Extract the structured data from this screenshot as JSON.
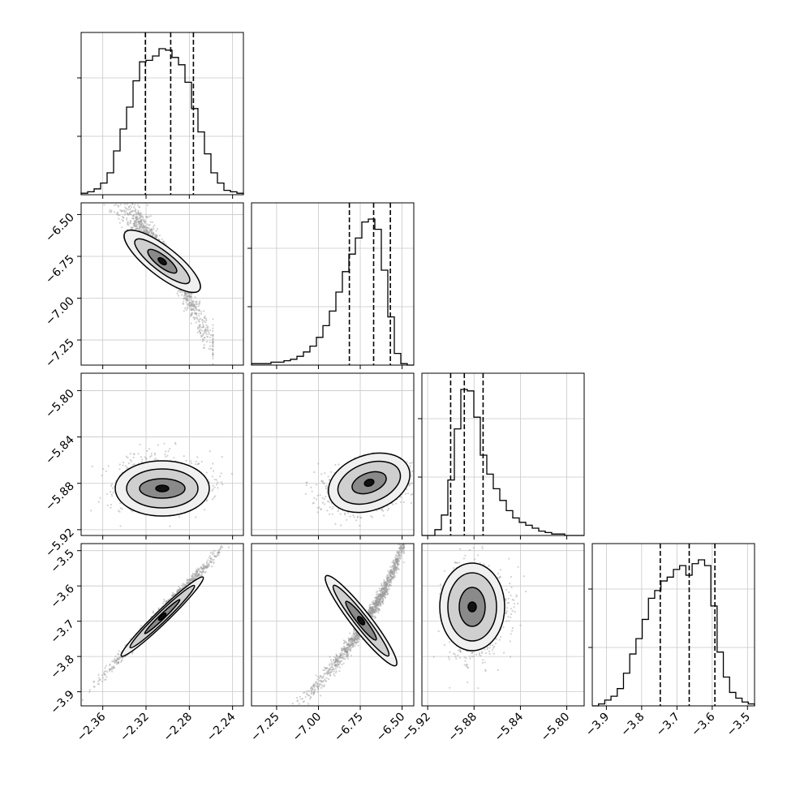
{
  "chart_data": {
    "type": "corner",
    "grid": true,
    "parameters": [
      {
        "ticks": [
          -2.36,
          -2.32,
          -2.28,
          -2.24
        ],
        "tick_labels": [
          "−2.36",
          "−2.32",
          "−2.28",
          "−2.24"
        ],
        "range": [
          -2.38,
          -2.23
        ],
        "quantiles": [
          -2.3206,
          -2.2972,
          -2.2762
        ],
        "mode": -2.297
      },
      {
        "ticks": [
          -7.25,
          -7.0,
          -6.75,
          -6.5
        ],
        "tick_labels": [
          "−7.25",
          "−7.00",
          "−6.75",
          "−6.50"
        ],
        "range": [
          -7.4,
          -6.43
        ],
        "quantiles": [
          -6.815,
          -6.67,
          -6.57
        ],
        "mode": -6.63
      },
      {
        "ticks": [
          -5.92,
          -5.88,
          -5.84,
          -5.8
        ],
        "tick_labels": [
          "−5.92",
          "−5.88",
          "−5.84",
          "−5.80"
        ],
        "range": [
          -5.925,
          -5.785
        ],
        "quantiles": [
          -5.9002,
          -5.8884,
          -5.8722
        ],
        "mode": -5.892
      },
      {
        "ticks": [
          -3.9,
          -3.8,
          -3.7,
          -3.6,
          -3.5
        ],
        "tick_labels": [
          "−3.9",
          "−3.8",
          "−3.7",
          "−3.6",
          "−3.5"
        ],
        "range": [
          -3.94,
          -3.48
        ],
        "quantiles": [
          -3.7473,
          -3.6652,
          -3.5924
        ],
        "mode": -3.6
      }
    ],
    "histograms": [
      {
        "counts": [
          1,
          2,
          4,
          8,
          15,
          30,
          45,
          60,
          78,
          91,
          92,
          95,
          100,
          99,
          94,
          89,
          77,
          59,
          43,
          28,
          15,
          8,
          3,
          2,
          1
        ]
      },
      {
        "counts": [
          1,
          1,
          1,
          2,
          2,
          3,
          4,
          6,
          9,
          13,
          19,
          27,
          37,
          50,
          64,
          76,
          87,
          98,
          100,
          93,
          65,
          33,
          8,
          1,
          0
        ]
      },
      {
        "counts": [
          0,
          0,
          4,
          14,
          38,
          73,
          100,
          99,
          81,
          55,
          42,
          32,
          24,
          17,
          12,
          9,
          7,
          5,
          3,
          2,
          1,
          1,
          0,
          0,
          0
        ]
      },
      {
        "counts": [
          0,
          1,
          3,
          5,
          9,
          17,
          27,
          35,
          45,
          56,
          60,
          65,
          67,
          71,
          73,
          68,
          74,
          76,
          73,
          52,
          28,
          15,
          7,
          4,
          2,
          1
        ]
      }
    ],
    "scatter_panels": [
      {
        "x": 0,
        "y": 1
      },
      {
        "x": 0,
        "y": 2
      },
      {
        "x": 1,
        "y": 2
      },
      {
        "x": 0,
        "y": 3
      },
      {
        "x": 1,
        "y": 3
      },
      {
        "x": 2,
        "y": 3
      }
    ]
  }
}
